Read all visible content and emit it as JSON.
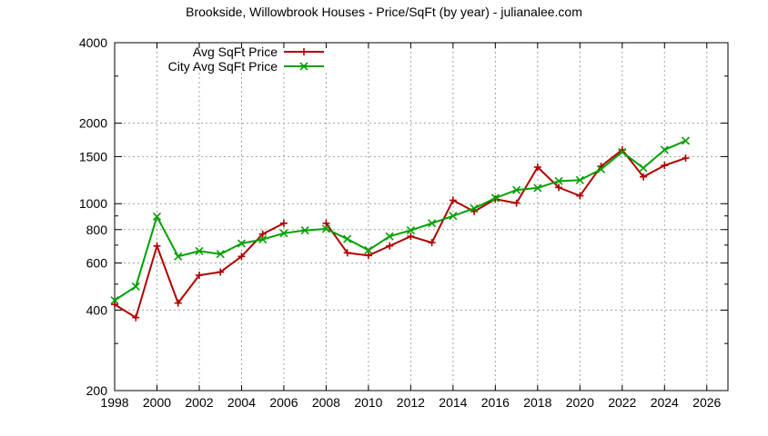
{
  "chart_data": {
    "type": "line",
    "title": "Brookside, Willowbrook Houses - Price/SqFt (by year) - julianalee.com",
    "xlabel": "",
    "ylabel": "",
    "x_scale": "linear",
    "y_scale": "log",
    "xlim": [
      1998,
      2027
    ],
    "ylim": [
      200,
      4000
    ],
    "x_ticks": [
      1998,
      2000,
      2002,
      2004,
      2006,
      2008,
      2010,
      2012,
      2014,
      2016,
      2018,
      2020,
      2022,
      2024,
      2026
    ],
    "y_ticks": [
      200,
      400,
      600,
      800,
      1000,
      1500,
      2000,
      4000
    ],
    "grid": true,
    "legend_position": "top-left",
    "series": [
      {
        "name": "Avg SqFt Price",
        "color": "#b00000",
        "marker": "plus",
        "segments": [
          [
            [
              1998,
              420
            ],
            [
              1999,
              375
            ],
            [
              2000,
              695
            ],
            [
              2001,
              425
            ],
            [
              2002,
              540
            ],
            [
              2003,
              555
            ],
            [
              2004,
              635
            ],
            [
              2005,
              770
            ],
            [
              2006,
              845
            ]
          ],
          [
            [
              2008,
              845
            ],
            [
              2009,
              655
            ],
            [
              2010,
              640
            ],
            [
              2011,
              695
            ],
            [
              2012,
              755
            ],
            [
              2013,
              715
            ],
            [
              2014,
              1030
            ],
            [
              2015,
              935
            ],
            [
              2016,
              1040
            ],
            [
              2017,
              1005
            ],
            [
              2018,
              1370
            ],
            [
              2019,
              1150
            ],
            [
              2020,
              1070
            ],
            [
              2021,
              1380
            ],
            [
              2022,
              1590
            ],
            [
              2023,
              1260
            ],
            [
              2024,
              1390
            ],
            [
              2025,
              1480
            ]
          ]
        ]
      },
      {
        "name": "City Avg SqFt Price",
        "color": "#00a000",
        "marker": "cross",
        "segments": [
          [
            [
              1998,
              435
            ],
            [
              1999,
              490
            ],
            [
              2000,
              895
            ],
            [
              2001,
              635
            ],
            [
              2002,
              665
            ],
            [
              2003,
              648
            ],
            [
              2004,
              710
            ],
            [
              2005,
              735
            ],
            [
              2006,
              775
            ],
            [
              2007,
              795
            ],
            [
              2008,
              805
            ],
            [
              2009,
              738
            ],
            [
              2010,
              670
            ],
            [
              2011,
              755
            ],
            [
              2012,
              795
            ],
            [
              2013,
              845
            ],
            [
              2014,
              900
            ],
            [
              2015,
              960
            ],
            [
              2016,
              1050
            ],
            [
              2017,
              1125
            ],
            [
              2018,
              1145
            ],
            [
              2019,
              1215
            ],
            [
              2020,
              1225
            ],
            [
              2021,
              1345
            ],
            [
              2022,
              1560
            ],
            [
              2023,
              1360
            ],
            [
              2024,
              1590
            ],
            [
              2025,
              1720
            ]
          ]
        ]
      }
    ]
  }
}
